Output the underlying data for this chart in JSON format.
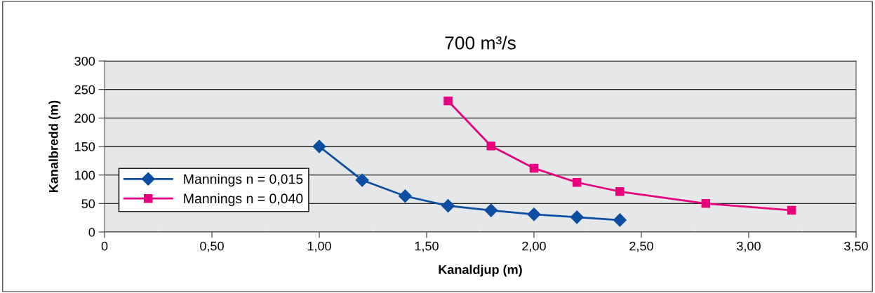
{
  "chart_data": {
    "type": "line",
    "title": "700 m³/s",
    "xlabel": "Kanaldjup (m)",
    "ylabel": "Kanalbredd (m)",
    "series": [
      {
        "name": "Mannings n = 0,015",
        "color": "#0b4ea2",
        "marker": "diamond",
        "x": [
          1.0,
          1.2,
          1.4,
          1.6,
          1.8,
          2.0,
          2.2,
          2.4
        ],
        "values": [
          150,
          91,
          63,
          46,
          38,
          31,
          26,
          21
        ]
      },
      {
        "name": "Mannings n = 0,040",
        "color": "#e6007e",
        "marker": "square",
        "x": [
          1.6,
          1.8,
          2.0,
          2.2,
          2.4,
          2.8,
          3.2
        ],
        "values": [
          230,
          151,
          112,
          87,
          71,
          50,
          38
        ]
      }
    ],
    "xlim": [
      0,
      3.5
    ],
    "xticks": [
      {
        "value": 0,
        "label": "0"
      },
      {
        "value": 0.25,
        "label": null
      },
      {
        "value": 0.5,
        "label": "0,50"
      },
      {
        "value": 0.75,
        "label": null
      },
      {
        "value": 1.0,
        "label": "1,00"
      },
      {
        "value": 1.25,
        "label": null
      },
      {
        "value": 1.5,
        "label": "1,50"
      },
      {
        "value": 1.75,
        "label": null
      },
      {
        "value": 2.0,
        "label": "2,00"
      },
      {
        "value": 2.25,
        "label": null
      },
      {
        "value": 2.5,
        "label": "2,50"
      },
      {
        "value": 2.75,
        "label": null
      },
      {
        "value": 3.0,
        "label": "3,00"
      },
      {
        "value": 3.25,
        "label": null
      },
      {
        "value": 3.5,
        "label": "3,50"
      }
    ],
    "ylim": [
      0,
      300
    ],
    "yticks": [
      0,
      50,
      100,
      150,
      200,
      250,
      300
    ],
    "grid": "y",
    "legend": "bottom left",
    "line_style": "solid"
  }
}
